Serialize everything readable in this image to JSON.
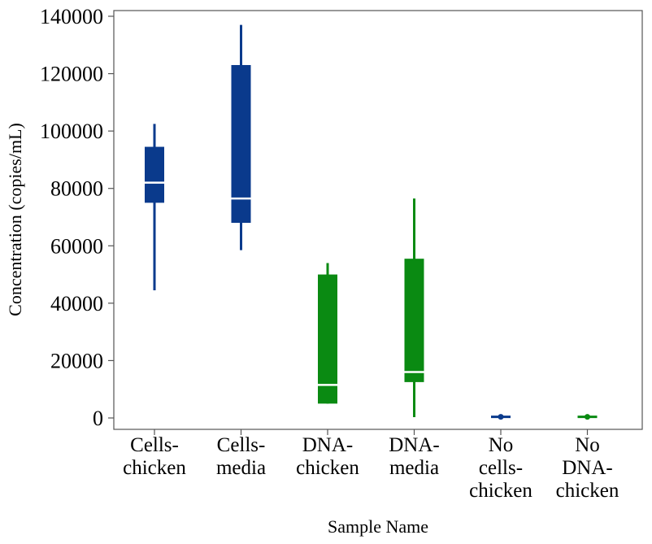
{
  "chart_data": {
    "type": "box",
    "title": "",
    "xlabel": "Sample Name",
    "ylabel": "Concentration (copies/mL)",
    "ylim": [
      0,
      140000
    ],
    "yticks": [
      0,
      20000,
      40000,
      60000,
      80000,
      100000,
      120000,
      140000
    ],
    "ytick_labels": [
      "0",
      "20000",
      "40000",
      "60000",
      "80000",
      "100000",
      "120000",
      "140000"
    ],
    "grid": false,
    "colors": {
      "cells": "#0a3a8c",
      "dna": "#0a8a12",
      "median": "#ffffff"
    },
    "categories": [
      {
        "lines": [
          "Cells-",
          "chicken"
        ],
        "group": "cells",
        "min": 44500,
        "q1": 75000,
        "median": 82000,
        "q3": 94500,
        "max": 102500
      },
      {
        "lines": [
          "Cells-",
          "media"
        ],
        "group": "cells",
        "min": 58500,
        "q1": 68000,
        "median": 76500,
        "q3": 123000,
        "max": 137000
      },
      {
        "lines": [
          "DNA-",
          "chicken"
        ],
        "group": "dna",
        "min": 5000,
        "q1": 5000,
        "median": 11500,
        "q3": 50000,
        "max": 54000
      },
      {
        "lines": [
          "DNA-",
          "media"
        ],
        "group": "dna",
        "min": 300,
        "q1": 12500,
        "median": 16000,
        "q3": 55500,
        "max": 76500
      },
      {
        "lines": [
          "No",
          "cells-",
          "chicken"
        ],
        "group": "cells",
        "min": 300,
        "q1": 400,
        "median": 400,
        "q3": 500,
        "max": 600
      },
      {
        "lines": [
          "No",
          "DNA-",
          "chicken"
        ],
        "group": "dna",
        "min": 300,
        "q1": 400,
        "median": 400,
        "q3": 500,
        "max": 600
      }
    ]
  }
}
